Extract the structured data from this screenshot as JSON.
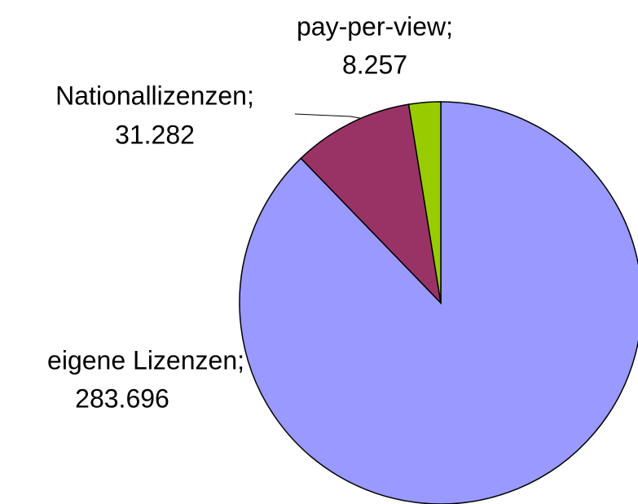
{
  "chart_data": {
    "type": "pie",
    "categories": [
      "eigene Lizenzen;",
      "Nationallizenzen;",
      "pay-per-view;"
    ],
    "values": [
      283696,
      31282,
      8257
    ],
    "value_labels": [
      "283.696",
      "31.282",
      "8.257"
    ],
    "colors": [
      "#9999ff",
      "#993366",
      "#99cc00"
    ]
  }
}
